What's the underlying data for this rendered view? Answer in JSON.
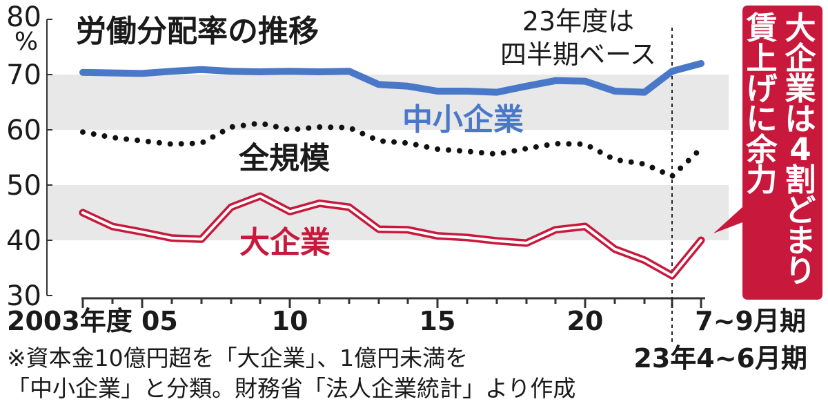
{
  "chart_data": {
    "type": "line",
    "title": "労働分配率の推移",
    "ylabel": "%",
    "ylim": [
      30,
      80
    ],
    "yticks": [
      30,
      40,
      50,
      60,
      70,
      80
    ],
    "grid_bands": [
      [
        40,
        50
      ],
      [
        60,
        70
      ]
    ],
    "x": [
      "2003",
      "2004",
      "2005",
      "2006",
      "2007",
      "2008",
      "2009",
      "2010",
      "2011",
      "2012",
      "2013",
      "2014",
      "2015",
      "2016",
      "2017",
      "2018",
      "2019",
      "2020",
      "2021",
      "2022",
      "23年4~6月期",
      "7~9月期"
    ],
    "xtick_labels": [
      {
        "at": "2003",
        "label": "2003年度 05"
      },
      {
        "at": "2010",
        "label": "10"
      },
      {
        "at": "2015",
        "label": "15"
      },
      {
        "at": "2020",
        "label": "20"
      },
      {
        "at": "7~9月期",
        "label": "7~9月期"
      },
      {
        "at": "23年4~6月期",
        "label": "23年4~6月期"
      }
    ],
    "series": [
      {
        "name": "中小企業",
        "color": "#4a78c8",
        "style": "solid",
        "values": [
          70.4,
          70.3,
          70.2,
          70.6,
          70.9,
          70.6,
          70.5,
          70.6,
          70.5,
          70.6,
          68.2,
          67.9,
          67.0,
          67.0,
          66.8,
          67.9,
          68.9,
          68.8,
          67.0,
          66.8,
          70.6,
          72.0
        ]
      },
      {
        "name": "全規模",
        "color": "#111111",
        "style": "dotted",
        "values": [
          59.6,
          58.6,
          58.0,
          57.4,
          57.6,
          60.5,
          61.2,
          60.0,
          60.5,
          60.4,
          58.0,
          57.6,
          56.5,
          56.1,
          55.6,
          56.6,
          57.5,
          57.4,
          54.6,
          53.8,
          51.6,
          56.6
        ]
      },
      {
        "name": "大企業",
        "color": "#c8193c",
        "style": "double",
        "values": [
          45.0,
          42.5,
          41.5,
          40.4,
          40.2,
          46.0,
          48.0,
          45.2,
          46.7,
          46.0,
          42.0,
          41.9,
          40.8,
          40.5,
          39.9,
          39.5,
          41.9,
          42.5,
          38.4,
          36.4,
          33.6,
          40.0
        ]
      }
    ],
    "annotations": {
      "divider_note": "23年度は\n四半期ベース",
      "callout": "大企業は4割どまり、\n賃上げに余力"
    },
    "footnote": "※資本金10億円超を「大企業」、1億円未満を\n「中小企業」と分類。財務省「法人企業統計」より作成"
  },
  "colors": {
    "band": "#e8e8e8",
    "axis": "#333333",
    "callout_bg": "#c8193c"
  }
}
